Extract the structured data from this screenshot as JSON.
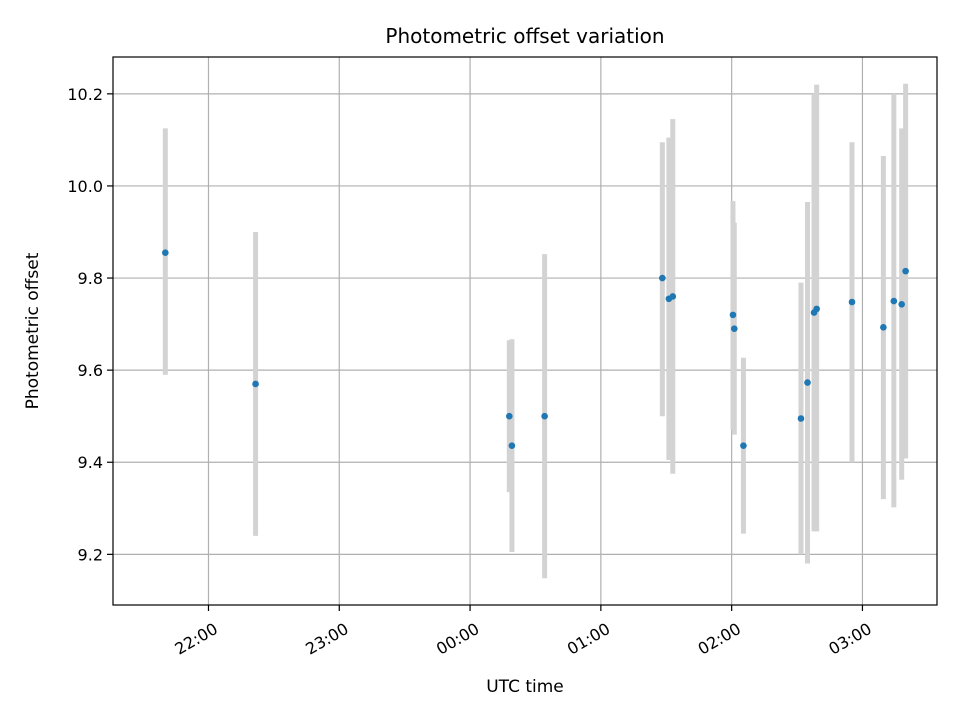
{
  "chart_data": {
    "type": "scatter",
    "title": "Photometric offset variation",
    "xlabel": "UTC time",
    "ylabel": "Photometric offset",
    "x_unit": "UTC hours (times after midnight shown as 24+)",
    "xlim": [
      21.27,
      27.57
    ],
    "ylim": [
      9.09,
      10.28
    ],
    "grid": true,
    "x_ticks": [
      {
        "value": 22,
        "label": "22:00"
      },
      {
        "value": 23,
        "label": "23:00"
      },
      {
        "value": 24,
        "label": "00:00"
      },
      {
        "value": 25,
        "label": "01:00"
      },
      {
        "value": 26,
        "label": "02:00"
      },
      {
        "value": 27,
        "label": "03:00"
      }
    ],
    "y_ticks": [
      {
        "value": 9.2,
        "label": "9.2"
      },
      {
        "value": 9.4,
        "label": "9.4"
      },
      {
        "value": 9.6,
        "label": "9.6"
      },
      {
        "value": 9.8,
        "label": "9.8"
      },
      {
        "value": 10.0,
        "label": "10.0"
      },
      {
        "value": 10.2,
        "label": "10.2"
      }
    ],
    "colors": {
      "point": "#1f77b4",
      "errorbar": "#d3d3d3",
      "grid": "#b0b0b0"
    },
    "points": [
      {
        "x": 21.67,
        "y": 9.855,
        "yerr_low": 9.59,
        "yerr_high": 10.125
      },
      {
        "x": 22.36,
        "y": 9.57,
        "yerr_low": 9.24,
        "yerr_high": 9.9
      },
      {
        "x": 24.3,
        "y": 9.5,
        "yerr_low": 9.335,
        "yerr_high": 9.665
      },
      {
        "x": 24.32,
        "y": 9.436,
        "yerr_low": 9.205,
        "yerr_high": 9.667
      },
      {
        "x": 24.57,
        "y": 9.5,
        "yerr_low": 9.148,
        "yerr_high": 9.852
      },
      {
        "x": 25.47,
        "y": 9.8,
        "yerr_low": 9.5,
        "yerr_high": 10.095
      },
      {
        "x": 25.52,
        "y": 9.755,
        "yerr_low": 9.405,
        "yerr_high": 10.105
      },
      {
        "x": 25.55,
        "y": 9.76,
        "yerr_low": 9.375,
        "yerr_high": 10.145
      },
      {
        "x": 26.01,
        "y": 9.72,
        "yerr_low": 9.472,
        "yerr_high": 9.967
      },
      {
        "x": 26.02,
        "y": 9.69,
        "yerr_low": 9.46,
        "yerr_high": 9.92
      },
      {
        "x": 26.09,
        "y": 9.436,
        "yerr_low": 9.245,
        "yerr_high": 9.627
      },
      {
        "x": 26.53,
        "y": 9.495,
        "yerr_low": 9.2,
        "yerr_high": 9.79
      },
      {
        "x": 26.58,
        "y": 9.573,
        "yerr_low": 9.18,
        "yerr_high": 9.965
      },
      {
        "x": 26.63,
        "y": 9.725,
        "yerr_low": 9.25,
        "yerr_high": 10.2
      },
      {
        "x": 26.65,
        "y": 9.733,
        "yerr_low": 9.25,
        "yerr_high": 10.22
      },
      {
        "x": 26.92,
        "y": 9.748,
        "yerr_low": 9.4,
        "yerr_high": 10.095
      },
      {
        "x": 27.16,
        "y": 9.693,
        "yerr_low": 9.32,
        "yerr_high": 10.065
      },
      {
        "x": 27.24,
        "y": 9.75,
        "yerr_low": 9.302,
        "yerr_high": 10.2
      },
      {
        "x": 27.3,
        "y": 9.743,
        "yerr_low": 9.362,
        "yerr_high": 10.125
      },
      {
        "x": 27.33,
        "y": 9.815,
        "yerr_low": 9.408,
        "yerr_high": 10.222
      }
    ]
  }
}
